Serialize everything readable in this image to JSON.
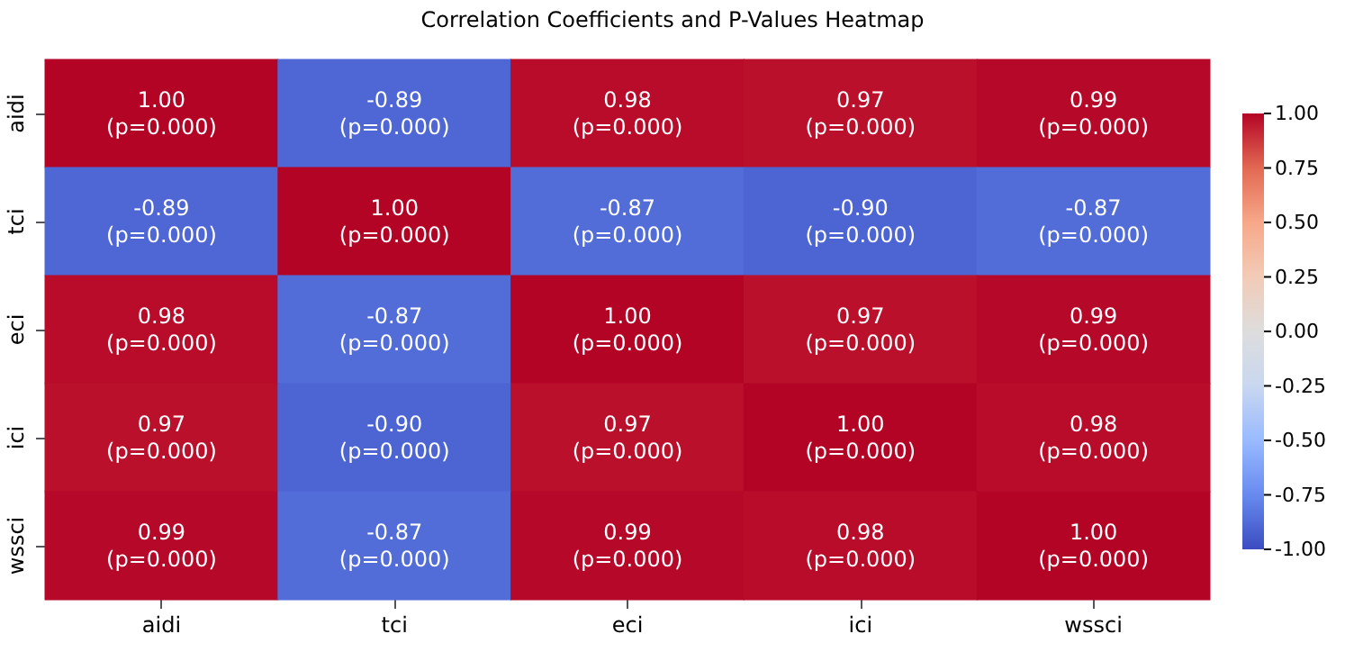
{
  "chart_data": {
    "type": "heatmap",
    "title": "Correlation Coefficients and P-Values Heatmap",
    "categories": [
      "aidi",
      "tci",
      "eci",
      "ici",
      "wssci"
    ],
    "y_categories": [
      "aidi",
      "tci",
      "eci",
      "ici",
      "wssci"
    ],
    "cells": [
      [
        1.0,
        -0.89,
        0.98,
        0.97,
        0.99
      ],
      [
        -0.89,
        1.0,
        -0.87,
        -0.9,
        -0.87
      ],
      [
        0.98,
        -0.87,
        1.0,
        0.97,
        0.99
      ],
      [
        0.97,
        -0.9,
        0.97,
        1.0,
        0.98
      ],
      [
        0.99,
        -0.87,
        0.99,
        0.98,
        1.0
      ]
    ],
    "cell_labels": [
      [
        "1.00\n(p=0.000)",
        "-0.89\n(p=0.000)",
        "0.98\n(p=0.000)",
        "0.97\n(p=0.000)",
        "0.99\n(p=0.000)"
      ],
      [
        "-0.89\n(p=0.000)",
        "1.00\n(p=0.000)",
        "-0.87\n(p=0.000)",
        "-0.90\n(p=0.000)",
        "-0.87\n(p=0.000)"
      ],
      [
        "0.98\n(p=0.000)",
        "-0.87\n(p=0.000)",
        "1.00\n(p=0.000)",
        "0.97\n(p=0.000)",
        "0.99\n(p=0.000)"
      ],
      [
        "0.97\n(p=0.000)",
        "-0.90\n(p=0.000)",
        "0.97\n(p=0.000)",
        "1.00\n(p=0.000)",
        "0.98\n(p=0.000)"
      ],
      [
        "0.99\n(p=0.000)",
        "-0.87\n(p=0.000)",
        "0.99\n(p=0.000)",
        "0.98\n(p=0.000)",
        "1.00\n(p=0.000)"
      ]
    ],
    "clim": [
      -1,
      1
    ],
    "cticks": [
      {
        "value": -1,
        "label": "-1.00"
      },
      {
        "value": -0.75,
        "label": "-0.75"
      },
      {
        "value": -0.5,
        "label": "-0.50"
      },
      {
        "value": -0.25,
        "label": "-0.25"
      },
      {
        "value": 0,
        "label": "0.00"
      },
      {
        "value": 0.25,
        "label": "0.25"
      },
      {
        "value": 0.5,
        "label": "0.50"
      },
      {
        "value": 0.75,
        "label": "0.75"
      },
      {
        "value": 1,
        "label": "1.00"
      }
    ]
  }
}
